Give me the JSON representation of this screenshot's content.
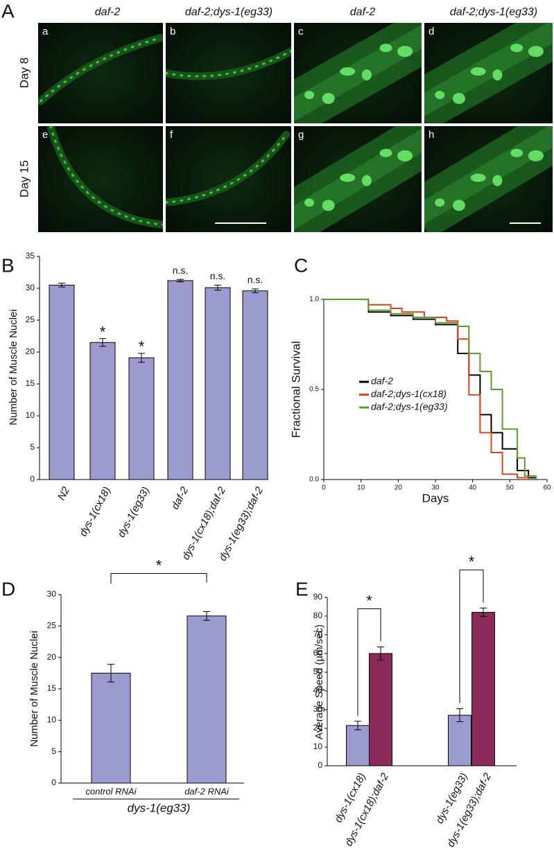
{
  "panel_a": {
    "letter": "A",
    "columns": [
      "daf-2",
      "daf-2;dys-1(eg33)",
      "daf-2",
      "daf-2;dys-1(eg33)"
    ],
    "rows": [
      "Day 8",
      "Day 15"
    ],
    "subpanels": [
      "a",
      "b",
      "c",
      "d",
      "e",
      "f",
      "g",
      "h"
    ]
  },
  "chart_data": [
    {
      "type": "bar",
      "letter": "B",
      "ylabel": "Number of Muscle Nuclei",
      "categories": [
        "N2",
        "dys-1(cx18)",
        "dys-1(eg33)",
        "daf-2",
        "dys-1(cx18);daf-2",
        "dys-1(eg33);daf-2"
      ],
      "values": [
        30.5,
        21.5,
        19.1,
        31.2,
        30.1,
        29.6
      ],
      "errors": [
        0.3,
        0.6,
        0.7,
        0.2,
        0.4,
        0.3
      ],
      "annotations": [
        null,
        "*",
        "*",
        "n.s.",
        "n.s.",
        "n.s."
      ],
      "color": "#9b9bd0",
      "ylim": [
        0,
        35
      ],
      "yticks": [
        0,
        5,
        10,
        15,
        20,
        25,
        30,
        35
      ]
    },
    {
      "type": "line",
      "letter": "C",
      "xlabel": "Days",
      "ylabel": "Fractional Survival",
      "drawstyle": "steps-post",
      "xlim": [
        0,
        60
      ],
      "xticks": [
        0,
        10,
        20,
        30,
        40,
        50,
        60
      ],
      "ylim": [
        0,
        1
      ],
      "yticks": [
        {
          "value": 0,
          "label": "0.0"
        },
        {
          "value": 0.5,
          "label": "0.5"
        },
        {
          "value": 1,
          "label": "1.0"
        }
      ],
      "series": [
        {
          "name": "daf-2",
          "color": "#000000",
          "x": [
            0,
            12,
            18,
            24,
            30,
            36,
            39,
            42,
            45,
            48,
            52,
            55,
            57
          ],
          "values": [
            1,
            0.93,
            0.91,
            0.89,
            0.86,
            0.7,
            0.58,
            0.36,
            0.26,
            0.17,
            0.05,
            0.01,
            0
          ]
        },
        {
          "name": "daf-2;dys-1(cx18)",
          "color": "#e8401c",
          "x": [
            0,
            12,
            18,
            21,
            27,
            33,
            36,
            39,
            42,
            45,
            48,
            52,
            55
          ],
          "values": [
            1,
            0.97,
            0.95,
            0.93,
            0.9,
            0.88,
            0.78,
            0.47,
            0.26,
            0.15,
            0.03,
            0.01,
            0
          ]
        },
        {
          "name": "daf-2;dys-1(eg33)",
          "color": "#5a9e2a",
          "x": [
            0,
            12,
            18,
            24,
            30,
            36,
            39,
            42,
            45,
            48,
            52,
            54,
            57
          ],
          "values": [
            1,
            0.94,
            0.92,
            0.9,
            0.87,
            0.85,
            0.7,
            0.6,
            0.5,
            0.28,
            0.12,
            0.02,
            0
          ]
        }
      ]
    },
    {
      "type": "bar",
      "letter": "D",
      "ylabel": "Number of Muscle Nuclei",
      "categories": [
        "control RNAi",
        "daf-2 RNAi"
      ],
      "group": "dys-1(eg33)",
      "values": [
        17.5,
        26.6
      ],
      "errors": [
        1.4,
        0.7
      ],
      "significance": [
        "*"
      ],
      "color": "#9b9bd0",
      "ylim": [
        0,
        30
      ],
      "yticks": [
        0,
        5,
        10,
        15,
        20,
        25,
        30
      ]
    },
    {
      "type": "bar",
      "letter": "E",
      "ylabel": "Average Speed (µm/sec)",
      "categories": [
        "dys-1(cx18)",
        "dys-1(cx18);daf-2",
        "dys-1(eg33)",
        "dys-1(eg33);daf-2"
      ],
      "values": [
        21.5,
        60,
        27,
        82
      ],
      "errors": [
        2.3,
        3.5,
        3.5,
        2.3
      ],
      "significance": [
        "*",
        "*"
      ],
      "colors": [
        "#9b9bd0",
        "#8c2a5c",
        "#9b9bd0",
        "#8c2a5c"
      ],
      "ylim": [
        0,
        90
      ],
      "yticks": [
        0,
        10,
        20,
        30,
        40,
        50,
        60,
        70,
        80,
        90
      ]
    }
  ]
}
